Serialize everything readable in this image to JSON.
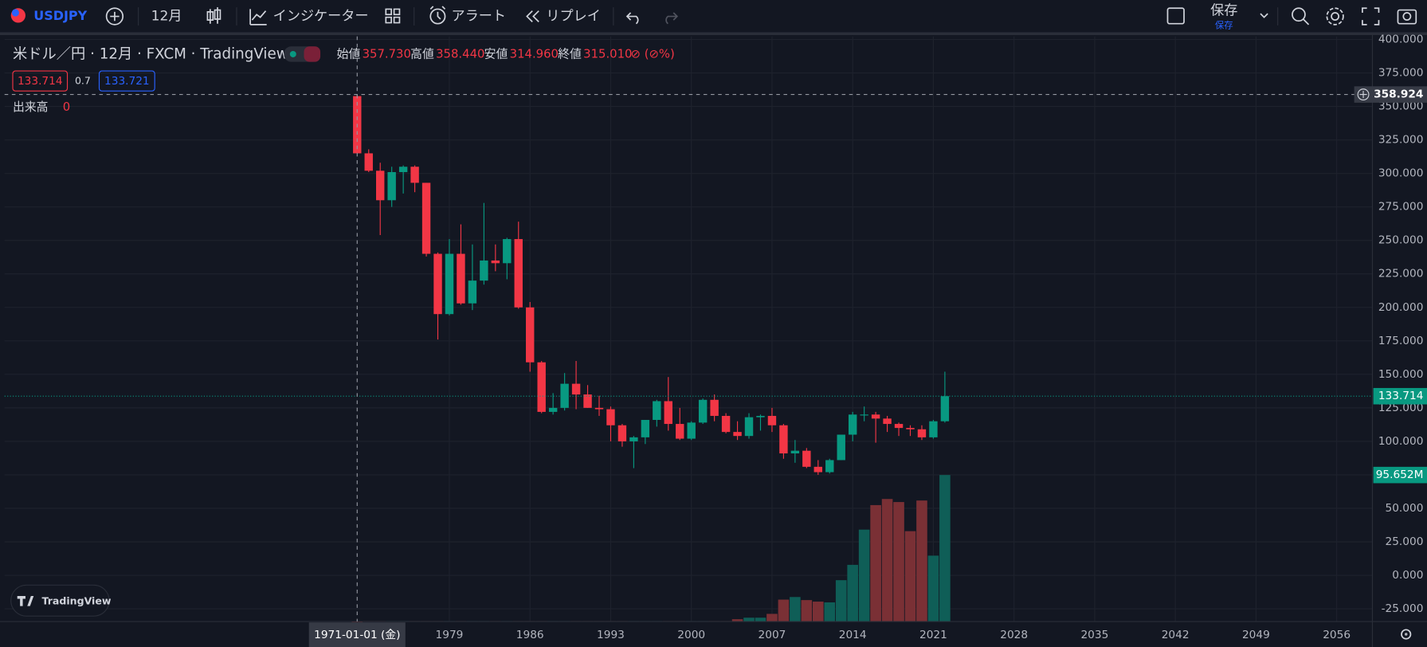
{
  "toolbar": {
    "symbol": "USDJPY",
    "interval": "12月",
    "indicators": "インジケーター",
    "alert": "アラート",
    "replay": "リプレイ",
    "save": "保存",
    "save_sub": "保存"
  },
  "legend": {
    "title": "米ドル／円 · 12月 · FXCM · TradingView",
    "items": [
      {
        "label": "始値",
        "value": "357.730"
      },
      {
        "label": "高値",
        "value": "358.440"
      },
      {
        "label": "安値",
        "value": "314.960"
      },
      {
        "label": "終値",
        "value": "315.010"
      }
    ],
    "change": "⊘ (⊘%)",
    "bid": "133.714",
    "spread": "0.7",
    "ask": "133.721",
    "volume_label": "出来高",
    "volume_value": "0"
  },
  "watermark": "TradingView",
  "chart_data": {
    "type": "candlestick",
    "x": [
      1971,
      1972,
      1973,
      1974,
      1975,
      1976,
      1977,
      1978,
      1979,
      1980,
      1981,
      1982,
      1983,
      1984,
      1985,
      1986,
      1987,
      1988,
      1989,
      1990,
      1991,
      1992,
      1993,
      1994,
      1995,
      1996,
      1997,
      1998,
      1999,
      2000,
      2001,
      2002,
      2003,
      2004,
      2005,
      2006,
      2007,
      2008,
      2009,
      2010,
      2011,
      2012,
      2013,
      2014,
      2015,
      2016,
      2017,
      2018,
      2019,
      2020,
      2021,
      2022
    ],
    "open": [
      357.73,
      315.01,
      302,
      280,
      301,
      305,
      293,
      240,
      195,
      240,
      203,
      220,
      235,
      233,
      251,
      200,
      159,
      122,
      125,
      143,
      135,
      125,
      124,
      112,
      100,
      103,
      116,
      130,
      113,
      102,
      114,
      131,
      119,
      107,
      104,
      118,
      119,
      112,
      91,
      93,
      81,
      77,
      86,
      105,
      120,
      120,
      117,
      113,
      110,
      109,
      103,
      115
    ],
    "high": [
      358.44,
      318,
      308,
      305,
      306,
      306,
      293,
      241,
      251,
      262,
      247,
      278,
      247,
      252,
      264,
      204,
      160,
      136,
      151,
      160,
      142,
      134,
      126,
      113,
      104,
      116,
      131,
      148,
      125,
      115,
      132,
      135,
      121,
      115,
      121,
      120,
      125,
      113,
      101,
      95,
      86,
      87,
      105,
      122,
      126,
      122,
      119,
      114,
      112,
      112,
      116,
      152
    ],
    "low": [
      314.96,
      301,
      254,
      275,
      285,
      286,
      238,
      176,
      194,
      202,
      198,
      217,
      227,
      221,
      199,
      152,
      121,
      120,
      123,
      124,
      125,
      119,
      100,
      96,
      80,
      98,
      111,
      108,
      101,
      101,
      113,
      115,
      106,
      101,
      102,
      108,
      107,
      87,
      84,
      80,
      75,
      76,
      86,
      100,
      115,
      99,
      107,
      104,
      104,
      101,
      102,
      114
    ],
    "close": [
      315.01,
      302,
      280,
      301,
      305,
      293,
      240,
      195,
      240,
      203,
      220,
      235,
      233,
      251,
      200,
      159,
      122,
      125,
      143,
      135,
      125,
      124,
      112,
      100,
      103,
      116,
      130,
      113,
      102,
      114,
      131,
      119,
      107,
      104,
      118,
      119,
      112,
      91,
      93,
      81,
      77,
      86,
      105,
      120,
      120,
      117,
      113,
      110,
      109,
      103,
      115,
      133.714
    ],
    "volume": [
      0,
      0.3,
      0.3,
      0.3,
      0.3,
      0.3,
      0.3,
      0.3,
      0.3,
      0.3,
      0.3,
      0.3,
      0.3,
      0.3,
      0.3,
      0.3,
      0.3,
      0.3,
      0.3,
      0.3,
      0.3,
      0.3,
      0.3,
      0.3,
      0.3,
      0.3,
      0.3,
      0.3,
      0.3,
      0.3,
      0.3,
      0.3,
      0.3,
      1.5,
      2.5,
      2.5,
      5,
      14.3,
      16,
      14,
      13,
      12.5,
      27,
      37,
      60,
      76,
      80,
      78,
      59,
      79,
      43,
      95.652
    ],
    "last_volume_label": "95.652M",
    "volume_lim": [
      0,
      382
    ],
    "up_color": "#089981",
    "down_color": "#f23645",
    "volume_up_color": "#0f5e57",
    "volume_down_color": "#7a3035",
    "xlim": [
      1940.4,
      2059.1
    ],
    "xticks": [
      1979,
      1986,
      1993,
      2000,
      2007,
      2014,
      2021,
      2028,
      2035,
      2042,
      2049,
      2056
    ],
    "ylim": [
      -34.5,
      402.3
    ],
    "yticks": [
      {
        "value": 400,
        "label": "400.000"
      },
      {
        "value": 375,
        "label": "375.000"
      },
      {
        "value": 350,
        "label": "350.000"
      },
      {
        "value": 325,
        "label": "325.000"
      },
      {
        "value": 300,
        "label": "300.000"
      },
      {
        "value": 275,
        "label": "275.000"
      },
      {
        "value": 250,
        "label": "250.000"
      },
      {
        "value": 225,
        "label": "225.000"
      },
      {
        "value": 200,
        "label": "200.000"
      },
      {
        "value": 175,
        "label": "175.000"
      },
      {
        "value": 150,
        "label": "150.000"
      },
      {
        "value": 125,
        "label": "125.000"
      },
      {
        "value": 100,
        "label": "100.000"
      },
      {
        "value": 75,
        "label": "75.000"
      },
      {
        "value": 50,
        "label": "50.000"
      },
      {
        "value": 25,
        "label": "25.000"
      },
      {
        "value": 0,
        "label": "0.000"
      },
      {
        "value": -25,
        "label": "-25.000"
      }
    ],
    "grid": true,
    "crosshair": {
      "x": 1971,
      "x_label": "1971-01-01 (金)",
      "price": 358.924
    }
  }
}
